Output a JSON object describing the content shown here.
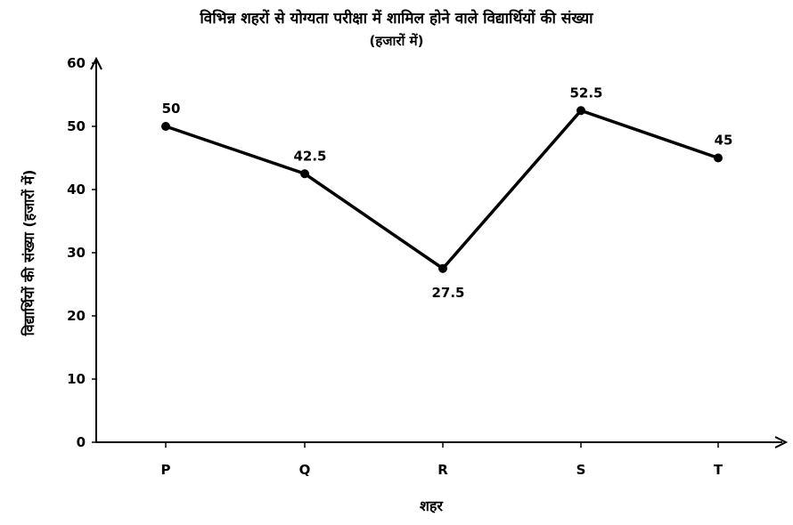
{
  "chart_data": {
    "type": "line",
    "title": "विभिन्न शहरों से योग्यता परीक्षा में शामिल होने वाले विद्यार्थियों की संख्या",
    "subtitle": "(हजारों में)",
    "xlabel": "शहर",
    "ylabel": "विद्यार्थियों की संख्या (हजारों में)",
    "categories": [
      "P",
      "Q",
      "R",
      "S",
      "T"
    ],
    "values": [
      50,
      42.5,
      27.5,
      52.5,
      45
    ],
    "data_labels": [
      "50",
      "42.5",
      "27.5",
      "52.5",
      "45"
    ],
    "ylim": [
      0,
      60
    ],
    "yticks": [
      0,
      10,
      20,
      30,
      40,
      50,
      60
    ],
    "ytick_labels": [
      "0",
      "10",
      "20",
      "30",
      "40",
      "50",
      "60"
    ],
    "grid": false,
    "line_color": "#000000"
  }
}
